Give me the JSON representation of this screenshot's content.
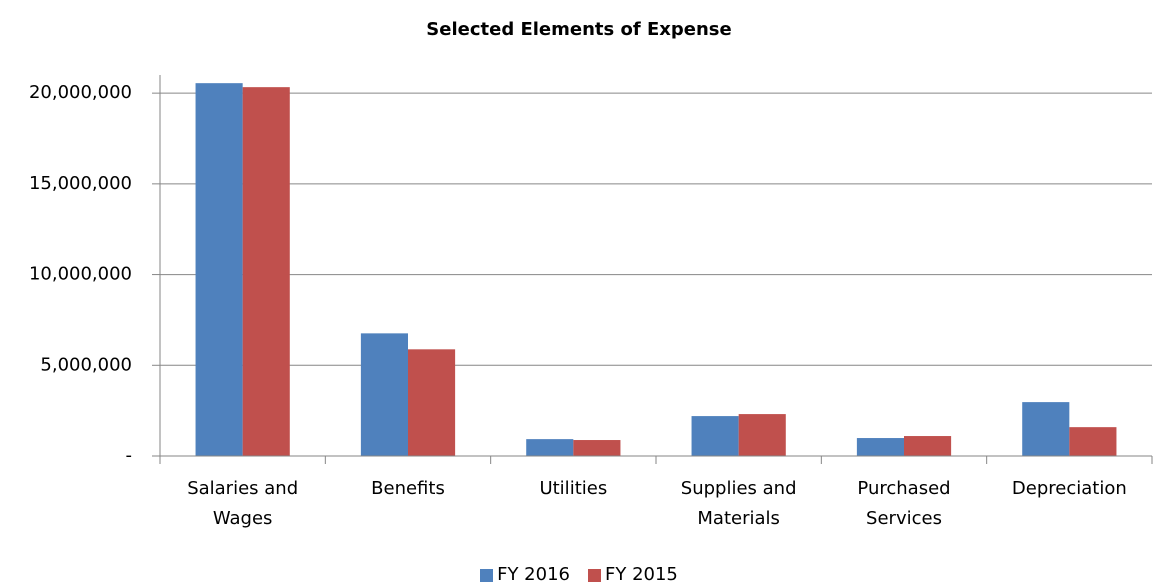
{
  "chart_data": {
    "type": "bar",
    "title": "Selected Elements of Expense",
    "categories": [
      "Salaries and Wages",
      "Benefits",
      "Utilities",
      "Supplies and Materials",
      "Purchased Services",
      "Depreciation"
    ],
    "series": [
      {
        "name": "FY 2016",
        "color": "#4f81bd",
        "values": [
          20550000,
          6760000,
          930000,
          2200000,
          990000,
          2970000
        ]
      },
      {
        "name": "FY 2015",
        "color": "#c0504d",
        "values": [
          20330000,
          5880000,
          880000,
          2310000,
          1100000,
          1590000
        ]
      }
    ],
    "ylim": [
      0,
      21000000
    ],
    "yticks": [
      {
        "value": 0,
        "label": "-"
      },
      {
        "value": 5000000,
        "label": "5,000,000"
      },
      {
        "value": 10000000,
        "label": "10,000,000"
      },
      {
        "value": 15000000,
        "label": "15,000,000"
      },
      {
        "value": 20000000,
        "label": "20,000,000"
      }
    ],
    "grid": true,
    "legend": "bottom"
  }
}
